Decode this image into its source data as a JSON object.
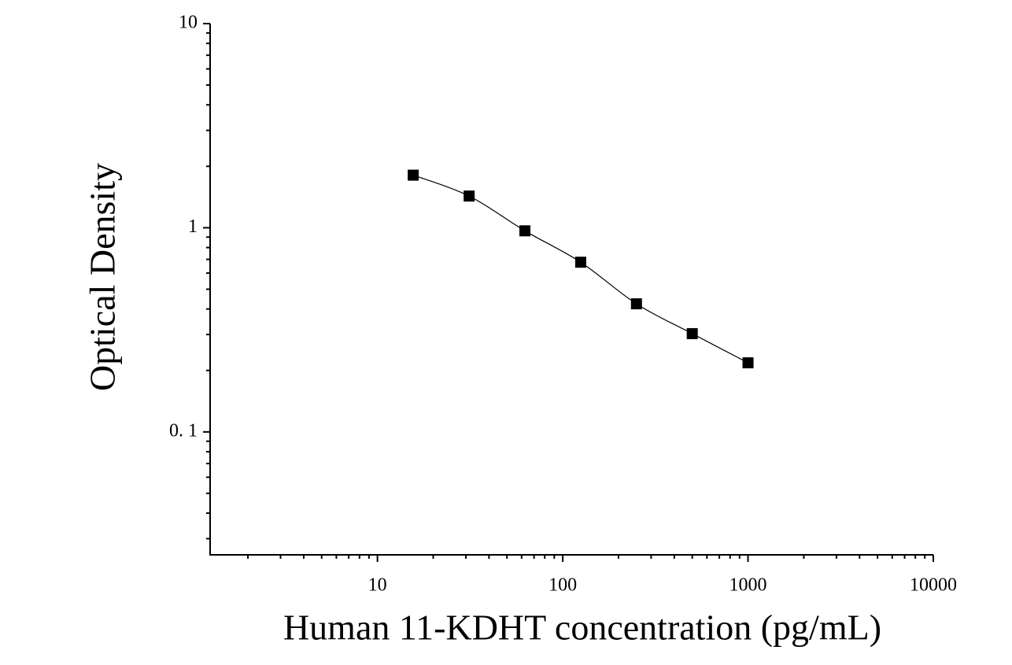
{
  "chart_data": {
    "type": "scatter",
    "x_label": "Human 11-KDHT concentration (pg/mL)",
    "y_label": "Optical Density",
    "x": [
      15.6,
      31.25,
      62.5,
      125,
      250,
      500,
      1000
    ],
    "series": [
      {
        "color": "#000000",
        "values": [
          1.81,
          1.43,
          0.966,
          0.678,
          0.424,
          0.303,
          0.218
        ]
      }
    ],
    "xlim": [
      1.25,
      10000
    ],
    "ylim": [
      0.025,
      10
    ],
    "xticks": [
      10,
      100,
      1000,
      10000
    ],
    "yticks": [
      {
        "value": 0.1,
        "label": "0. 1"
      },
      1,
      10
    ],
    "xscale": "log",
    "yscale": "log",
    "minor_ticks": true,
    "fit_curve": true,
    "grid": false
  }
}
